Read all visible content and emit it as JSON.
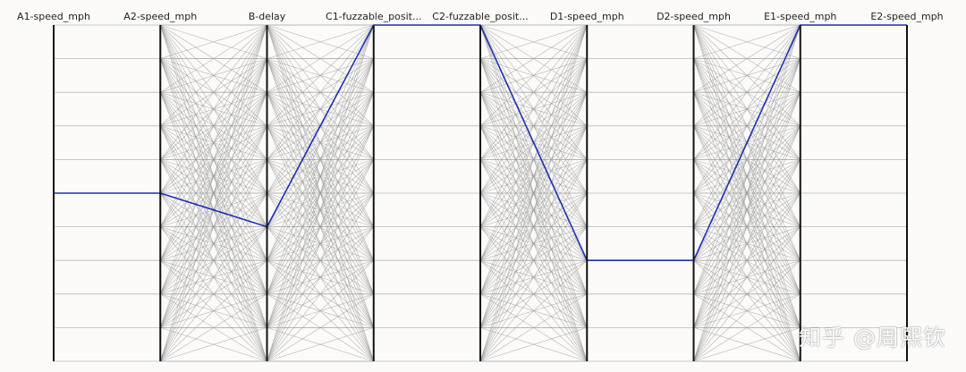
{
  "chart_data": {
    "type": "parallel_coordinates",
    "axes": [
      {
        "name": "A1-speed_mph"
      },
      {
        "name": "A2-speed_mph"
      },
      {
        "name": "B-delay"
      },
      {
        "name": "C1-fuzzable_posit..."
      },
      {
        "name": "C2-fuzzable_posit..."
      },
      {
        "name": "D1-speed_mph"
      },
      {
        "name": "D2-speed_mph"
      },
      {
        "name": "E1-speed_mph"
      },
      {
        "name": "E2-speed_mph"
      }
    ],
    "levels": 11,
    "highlighted_path": [
      5,
      5,
      6,
      0,
      0,
      7,
      7,
      0,
      0
    ],
    "segments": [
      {
        "from": 0,
        "to": 1,
        "pairs": [
          [
            5,
            5
          ]
        ]
      },
      {
        "from": 1,
        "to": 2,
        "pairs": "all"
      },
      {
        "from": 2,
        "to": 3,
        "pairs": "all"
      },
      {
        "from": 3,
        "to": 4,
        "pairs": [
          [
            0,
            0
          ]
        ]
      },
      {
        "from": 4,
        "to": 5,
        "pairs": "all"
      },
      {
        "from": 5,
        "to": 6,
        "pairs": [
          [
            7,
            7
          ]
        ]
      },
      {
        "from": 6,
        "to": 7,
        "pairs": "all"
      },
      {
        "from": 7,
        "to": 8,
        "pairs": [
          [
            0,
            0
          ]
        ]
      }
    ],
    "colors": {
      "background_line": "#9a9a9a",
      "highlight": "#1c2fb5",
      "axis": "#111111"
    },
    "grid": true
  },
  "watermark": "知乎 @周熙钦"
}
